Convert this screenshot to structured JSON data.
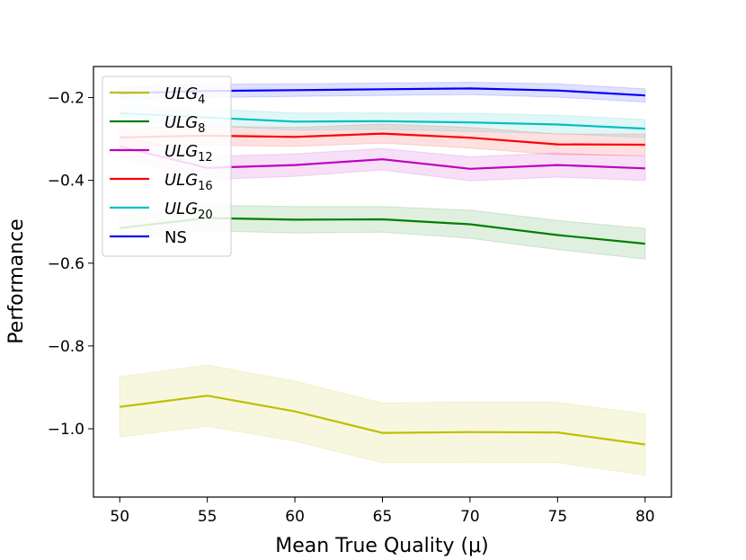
{
  "chart_data": {
    "type": "line",
    "title": "",
    "xlabel": "Mean True Quality (μ)",
    "ylabel": "Performance",
    "xlim": [
      48.5,
      81.5
    ],
    "ylim": [
      -1.165,
      -0.125
    ],
    "x": [
      50,
      55,
      60,
      65,
      70,
      75,
      80
    ],
    "xticks": [
      50,
      55,
      60,
      65,
      70,
      75,
      80
    ],
    "xtick_labels": [
      "50",
      "55",
      "60",
      "65",
      "70",
      "75",
      "80"
    ],
    "yticks": [
      -0.2,
      -0.4,
      -0.6,
      -0.8,
      -1.0
    ],
    "ytick_labels": [
      "−0.2",
      "−0.4",
      "−0.6",
      "−0.8",
      "−1.0"
    ],
    "legend_position": "top-left",
    "series": [
      {
        "name": "ULG4",
        "label_base": "ULG",
        "label_sub": "4",
        "italic": true,
        "color": "#bfbf00",
        "values": [
          -0.947,
          -0.92,
          -0.958,
          -1.01,
          -1.008,
          -1.009,
          -1.038
        ],
        "lower": [
          -1.02,
          -0.994,
          -1.03,
          -1.082,
          -1.081,
          -1.082,
          -1.112
        ],
        "upper": [
          -0.874,
          -0.846,
          -0.885,
          -0.938,
          -0.935,
          -0.936,
          -0.964
        ]
      },
      {
        "name": "ULG8",
        "label_base": "ULG",
        "label_sub": "8",
        "italic": true,
        "color": "#008000",
        "values": [
          -0.515,
          -0.491,
          -0.495,
          -0.494,
          -0.506,
          -0.532,
          -0.553
        ],
        "lower": [
          -0.545,
          -0.522,
          -0.527,
          -0.525,
          -0.54,
          -0.567,
          -0.59
        ],
        "upper": [
          -0.485,
          -0.46,
          -0.463,
          -0.463,
          -0.472,
          -0.497,
          -0.516
        ]
      },
      {
        "name": "ULG12",
        "label_base": "ULG",
        "label_sub": "12",
        "italic": true,
        "color": "#bf00bf",
        "values": [
          -0.318,
          -0.37,
          -0.363,
          -0.349,
          -0.372,
          -0.363,
          -0.371
        ],
        "lower": [
          -0.345,
          -0.398,
          -0.39,
          -0.375,
          -0.401,
          -0.392,
          -0.4
        ],
        "upper": [
          -0.291,
          -0.342,
          -0.336,
          -0.323,
          -0.343,
          -0.334,
          -0.342
        ]
      },
      {
        "name": "ULG16",
        "label_base": "ULG",
        "label_sub": "16",
        "italic": true,
        "color": "#ff0000",
        "values": [
          -0.296,
          -0.292,
          -0.295,
          -0.287,
          -0.297,
          -0.313,
          -0.314
        ],
        "lower": [
          -0.318,
          -0.315,
          -0.318,
          -0.31,
          -0.322,
          -0.338,
          -0.34
        ],
        "upper": [
          -0.274,
          -0.269,
          -0.272,
          -0.264,
          -0.272,
          -0.288,
          -0.288
        ]
      },
      {
        "name": "ULG20",
        "label_base": "ULG",
        "label_sub": "20",
        "italic": true,
        "color": "#00bfbf",
        "values": [
          -0.238,
          -0.248,
          -0.258,
          -0.257,
          -0.26,
          -0.265,
          -0.275
        ],
        "lower": [
          -0.258,
          -0.268,
          -0.279,
          -0.277,
          -0.282,
          -0.287,
          -0.297
        ],
        "upper": [
          -0.218,
          -0.228,
          -0.237,
          -0.237,
          -0.238,
          -0.243,
          -0.253
        ]
      },
      {
        "name": "NS",
        "label_base": "NS",
        "label_sub": "",
        "italic": false,
        "color": "#0000ff",
        "values": [
          -0.19,
          -0.184,
          -0.182,
          -0.18,
          -0.178,
          -0.183,
          -0.195
        ],
        "lower": [
          -0.205,
          -0.2,
          -0.197,
          -0.195,
          -0.193,
          -0.199,
          -0.211
        ],
        "upper": [
          -0.175,
          -0.168,
          -0.167,
          -0.165,
          -0.163,
          -0.167,
          -0.179
        ]
      }
    ]
  }
}
